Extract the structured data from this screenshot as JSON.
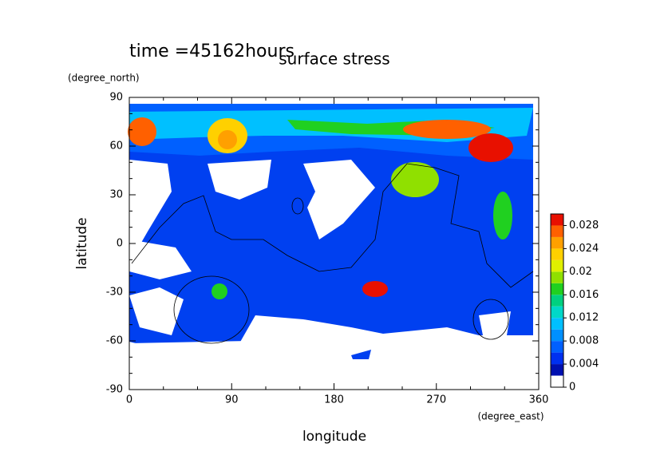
{
  "chart_data": {
    "type": "contour",
    "title": "surface stress",
    "annotation": "time =45162hours",
    "x_label": "longitude",
    "y_label": "latitude",
    "x_units": "(degree_east)",
    "y_units": "(degree_north)",
    "xlim": [
      0,
      360
    ],
    "xticks": [
      0,
      90,
      180,
      270,
      360
    ],
    "ylim": [
      -90,
      90
    ],
    "yticks": [
      -90,
      -60,
      -30,
      0,
      30,
      60,
      90
    ],
    "colorbar": {
      "lim": [
        0,
        0.03
      ],
      "ticks": [
        0,
        0.004,
        0.008,
        0.012,
        0.016,
        0.02,
        0.024,
        0.028
      ],
      "colors": [
        "#ffffff",
        "#0010b0",
        "#0030f0",
        "#0060ff",
        "#0090ff",
        "#00c0ff",
        "#00d8c8",
        "#00d080",
        "#20d020",
        "#90e000",
        "#e0f000",
        "#ffd000",
        "#ffa000",
        "#ff6000",
        "#e81000"
      ]
    }
  }
}
